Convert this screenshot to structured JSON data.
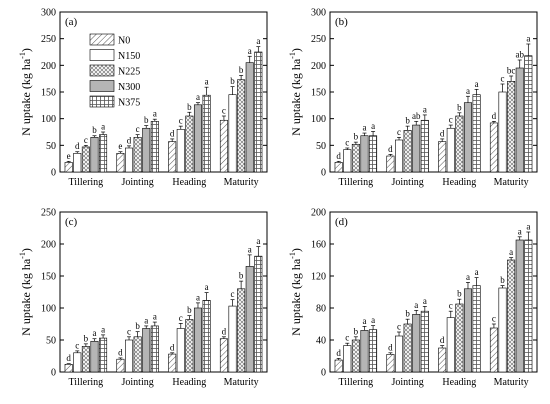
{
  "legend": {
    "entries": [
      "N0",
      "N150",
      "N225",
      "N300",
      "N375"
    ],
    "fills": [
      "diag",
      "white",
      "cross",
      "#b5b5b5",
      "grid"
    ]
  },
  "chart_data": [
    {
      "type": "bar",
      "panel_label": "(a)",
      "ylabel": "N uptake (kg ha-1)",
      "ylim": [
        0,
        300
      ],
      "yticks": [
        0,
        50,
        100,
        150,
        200,
        250,
        300
      ],
      "categories": [
        "Tillering",
        "Jointing",
        "Heading",
        "Maturity"
      ],
      "series": [
        {
          "name": "N0",
          "values": [
            18,
            35,
            57,
            97
          ],
          "errors": [
            2,
            3,
            5,
            8
          ],
          "letters": [
            "e",
            "e",
            "d",
            "c"
          ]
        },
        {
          "name": "N150",
          "values": [
            35,
            45,
            80,
            145
          ],
          "errors": [
            3,
            4,
            6,
            15
          ],
          "letters": [
            "d",
            "d",
            "c",
            "b"
          ]
        },
        {
          "name": "N225",
          "values": [
            47,
            65,
            105,
            173
          ],
          "errors": [
            3,
            5,
            7,
            8
          ],
          "letters": [
            "c",
            "c",
            "b",
            "b"
          ]
        },
        {
          "name": "N300",
          "values": [
            65,
            82,
            126,
            205
          ],
          "errors": [
            3,
            5,
            4,
            12
          ],
          "letters": [
            "b",
            "b",
            "a",
            "a"
          ]
        },
        {
          "name": "N375",
          "values": [
            70,
            95,
            144,
            225
          ],
          "errors": [
            5,
            4,
            15,
            10
          ],
          "letters": [
            "a",
            "a",
            "a",
            "a"
          ]
        }
      ]
    },
    {
      "type": "bar",
      "panel_label": "(b)",
      "ylabel": "N uptake (kg ha-1)",
      "ylim": [
        0,
        300
      ],
      "yticks": [
        0,
        50,
        100,
        150,
        200,
        250,
        300
      ],
      "categories": [
        "Tillering",
        "Jointing",
        "Heading",
        "Maturity"
      ],
      "series": [
        {
          "name": "N0",
          "values": [
            18,
            30,
            57,
            92
          ],
          "errors": [
            2,
            3,
            5,
            3
          ],
          "letters": [
            "d",
            "d",
            "d",
            "d"
          ]
        },
        {
          "name": "N150",
          "values": [
            42,
            60,
            82,
            150
          ],
          "errors": [
            3,
            5,
            6,
            15
          ],
          "letters": [
            "c",
            "c",
            "c",
            "c"
          ]
        },
        {
          "name": "N225",
          "values": [
            52,
            78,
            105,
            170
          ],
          "errors": [
            4,
            8,
            6,
            10
          ],
          "letters": [
            "b",
            "b",
            "b",
            "bc"
          ]
        },
        {
          "name": "N300",
          "values": [
            68,
            88,
            130,
            195
          ],
          "errors": [
            5,
            7,
            12,
            15
          ],
          "letters": [
            "a",
            "ab",
            "a",
            "ab"
          ]
        },
        {
          "name": "N375",
          "values": [
            68,
            97,
            145,
            218
          ],
          "errors": [
            8,
            10,
            10,
            22
          ],
          "letters": [
            "a",
            "a",
            "a",
            "a"
          ]
        }
      ]
    },
    {
      "type": "bar",
      "panel_label": "(c)",
      "ylabel": "N uptake (kg ha-1)",
      "ylim": [
        0,
        250
      ],
      "yticks": [
        0,
        50,
        100,
        150,
        200,
        250
      ],
      "categories": [
        "Tillering",
        "Jointing",
        "Heading",
        "Maturity"
      ],
      "series": [
        {
          "name": "N0",
          "values": [
            12,
            20,
            28,
            52
          ],
          "errors": [
            1,
            2,
            2,
            3
          ],
          "letters": [
            "d",
            "d",
            "d",
            "d"
          ]
        },
        {
          "name": "N150",
          "values": [
            30,
            50,
            68,
            103
          ],
          "errors": [
            3,
            5,
            8,
            10
          ],
          "letters": [
            "c",
            "c",
            "c",
            "c"
          ]
        },
        {
          "name": "N225",
          "values": [
            40,
            55,
            82,
            130
          ],
          "errors": [
            4,
            8,
            6,
            12
          ],
          "letters": [
            "b",
            "b",
            "b",
            "b"
          ]
        },
        {
          "name": "N300",
          "values": [
            48,
            68,
            100,
            165
          ],
          "errors": [
            4,
            4,
            8,
            18
          ],
          "letters": [
            "a",
            "a",
            "a",
            "a"
          ]
        },
        {
          "name": "N375",
          "values": [
            53,
            72,
            112,
            181
          ],
          "errors": [
            5,
            6,
            12,
            15
          ],
          "letters": [
            "a",
            "a",
            "a",
            "a"
          ]
        }
      ]
    },
    {
      "type": "bar",
      "panel_label": "(d)",
      "ylabel": "N uptake (kg ha-1)",
      "ylim": [
        0,
        200
      ],
      "yticks": [
        0,
        40,
        80,
        120,
        160,
        200
      ],
      "categories": [
        "Tillering",
        "Jointing",
        "Heading",
        "Maturity"
      ],
      "series": [
        {
          "name": "N0",
          "values": [
            15,
            22,
            30,
            55
          ],
          "errors": [
            2,
            2,
            3,
            5
          ],
          "letters": [
            "d",
            "d",
            "d",
            "c"
          ]
        },
        {
          "name": "N150",
          "values": [
            33,
            45,
            68,
            105
          ],
          "errors": [
            3,
            5,
            8,
            3
          ],
          "letters": [
            "c",
            "c",
            "c",
            "b"
          ]
        },
        {
          "name": "N225",
          "values": [
            40,
            60,
            85,
            140
          ],
          "errors": [
            4,
            6,
            6,
            3
          ],
          "letters": [
            "b",
            "b",
            "b",
            "a"
          ]
        },
        {
          "name": "N300",
          "values": [
            52,
            72,
            104,
            165
          ],
          "errors": [
            5,
            5,
            8,
            4
          ],
          "letters": [
            "a",
            "a",
            "a",
            "a"
          ]
        },
        {
          "name": "N375",
          "values": [
            53,
            76,
            108,
            165
          ],
          "errors": [
            5,
            6,
            10,
            10
          ],
          "letters": [
            "a",
            "a",
            "a",
            "a"
          ]
        }
      ]
    }
  ]
}
